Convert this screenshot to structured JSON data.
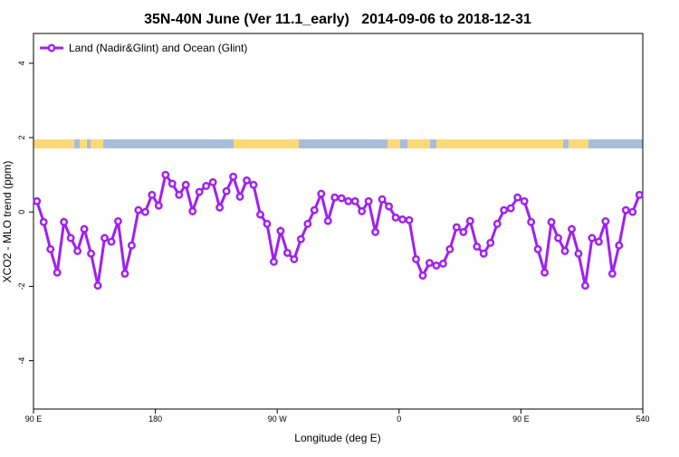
{
  "chart_data": {
    "type": "line",
    "title": "35N-40N June (Ver 11.1_early)   2014-09-06 to 2018-12-31",
    "xlabel": "Longitude (deg E)",
    "ylabel": "XCO2 - MLO trend (ppm)",
    "x": [
      92.5,
      97.5,
      102.5,
      107.5,
      112.5,
      117.5,
      122.5,
      127.5,
      132.5,
      137.5,
      142.5,
      147.5,
      152.5,
      157.5,
      162.5,
      167.5,
      172.5,
      177.5,
      182.5,
      187.5,
      192.5,
      197.5,
      202.5,
      207.5,
      212.5,
      217.5,
      222.5,
      227.5,
      232.5,
      237.5,
      242.5,
      247.5,
      252.5,
      257.5,
      262.5,
      267.5,
      272.5,
      277.5,
      282.5,
      287.5,
      292.5,
      297.5,
      302.5,
      307.5,
      312.5,
      317.5,
      322.5,
      327.5,
      332.5,
      337.5,
      342.5,
      347.5,
      352.5,
      357.5,
      362.5,
      367.5,
      372.5,
      377.5,
      382.5,
      387.5,
      392.5,
      397.5,
      402.5,
      407.5,
      412.5,
      417.5,
      422.5,
      427.5,
      432.5,
      437.5,
      442.5,
      447.5,
      452.5,
      457.5,
      462.5,
      467.5,
      472.5,
      477.5,
      482.5,
      487.5,
      492.5,
      497.5,
      502.5,
      507.5,
      512.5,
      517.5,
      522.5,
      527.5,
      532.5,
      537.5
    ],
    "series": [
      {
        "name": "Land (Nadir&Glint) and Ocean (Glint)",
        "color": "#a020f0",
        "values": [
          0.29,
          -0.27,
          -1.0,
          -1.63,
          -0.27,
          -0.7,
          -1.05,
          -0.46,
          -1.12,
          -1.98,
          -0.7,
          -0.8,
          -0.25,
          -1.66,
          -0.9,
          0.05,
          0,
          0.46,
          0.17,
          1.0,
          0.76,
          0.46,
          0.73,
          0.02,
          0.54,
          0.7,
          0.8,
          0.12,
          0.56,
          0.95,
          0.41,
          0.85,
          0.73,
          -0.07,
          -0.32,
          -1.34,
          -0.51,
          -1.1,
          -1.27,
          -0.73,
          -0.32,
          0.05,
          0.49,
          -0.24,
          0.39,
          0.37,
          0.29,
          0.29,
          0.02,
          0.29,
          -0.54,
          0.34,
          0.15,
          -0.15,
          -0.2,
          -0.22,
          -1.27,
          -1.71,
          -1.37,
          -1.44,
          -1.39,
          -1.0,
          -0.41,
          -0.54,
          -0.24,
          -0.93,
          -1.12,
          -0.83,
          -0.32,
          0.05,
          0.1,
          0.39,
          0.29,
          -0.27,
          -1.0,
          -1.63,
          -0.27,
          -0.7,
          -1.05,
          -0.46,
          -1.12,
          -1.98,
          -0.7,
          -0.8,
          -0.25,
          -1.66,
          -0.9,
          0.05,
          0,
          0.46
        ]
      }
    ],
    "xlim": [
      90,
      540
    ],
    "xticks": [
      {
        "value": 90,
        "label": "90 E"
      },
      180,
      {
        "value": 270,
        "label": "90 W"
      },
      0,
      {
        "value": 450,
        "label": "90 E"
      },
      540
    ],
    "ylim": [
      -5.3,
      4.8
    ],
    "yticks": [
      -4,
      -2,
      0,
      2,
      4
    ],
    "legend": "top-left"
  }
}
